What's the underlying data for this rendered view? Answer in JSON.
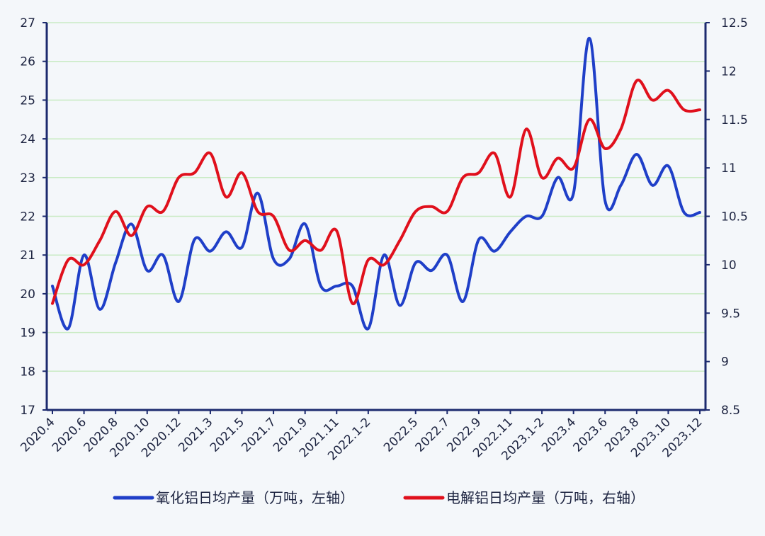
{
  "chart_data": {
    "type": "line",
    "title": "",
    "x": [
      "2020.4",
      "2020.5",
      "2020.6",
      "2020.7",
      "2020.8",
      "2020.9",
      "2020.10",
      "2020.11",
      "2020.12",
      "2021.1-2",
      "2021.3",
      "2021.4",
      "2021.5",
      "2021.6",
      "2021.7",
      "2021.8",
      "2021.9",
      "2021.10",
      "2021.11",
      "2021.12",
      "2022.1-2",
      "2022.3",
      "2022.4",
      "2022.5",
      "2022.6",
      "2022.7",
      "2022.8",
      "2022.9",
      "2022.10",
      "2022.11",
      "2022.12",
      "2023.1-2",
      "2023.3",
      "2023.4",
      "2023.5",
      "2023.6",
      "2023.7",
      "2023.8",
      "2023.9",
      "2023.10",
      "2023.11",
      "2023.12"
    ],
    "tick_labels": [
      "2020.4",
      "2020.6",
      "2020.8",
      "2020.10",
      "2020.12",
      "2021.3",
      "2021.5",
      "2021.7",
      "2021.9",
      "2021.11",
      "2022.1-2",
      "2022.5",
      "2022.7",
      "2022.9",
      "2022.11",
      "2023.1-2",
      "2023.4",
      "2023.6",
      "2023.8",
      "2023.10",
      "2023.12"
    ],
    "series": [
      {
        "name": "氧化铝日均产量（万吨，左轴）",
        "axis": "left",
        "color": "#1f3fc8",
        "values": [
          20.2,
          19.1,
          21.0,
          19.6,
          20.8,
          21.8,
          20.6,
          21.0,
          19.8,
          21.4,
          21.1,
          21.6,
          21.2,
          22.6,
          20.9,
          20.9,
          21.8,
          20.2,
          20.2,
          20.2,
          19.1,
          21.0,
          19.7,
          20.8,
          20.6,
          21.0,
          19.8,
          21.4,
          21.1,
          21.6,
          22.0,
          22.0,
          23.0,
          22.6,
          26.6,
          22.4,
          22.8,
          23.6,
          22.8,
          23.3,
          22.1,
          22.1
        ]
      },
      {
        "name": "电解铝日均产量（万吨，右轴）",
        "axis": "right",
        "color": "#e0101c",
        "values": [
          9.6,
          10.05,
          10.0,
          10.25,
          10.55,
          10.3,
          10.6,
          10.55,
          10.9,
          10.95,
          11.15,
          10.7,
          10.95,
          10.55,
          10.5,
          10.15,
          10.25,
          10.15,
          10.35,
          9.6,
          10.05,
          10.0,
          10.25,
          10.55,
          10.6,
          10.55,
          10.9,
          10.95,
          11.15,
          10.7,
          11.4,
          10.9,
          11.1,
          11.0,
          11.5,
          11.2,
          11.4,
          11.9,
          11.7,
          11.8,
          11.6,
          11.6
        ]
      }
    ],
    "y_left": {
      "min": 17,
      "max": 27,
      "step": 1,
      "ticks": [
        "17",
        "18",
        "19",
        "20",
        "21",
        "22",
        "23",
        "24",
        "25",
        "26",
        "27"
      ]
    },
    "y_right": {
      "min": 8.5,
      "max": 12.5,
      "step": 0.5,
      "ticks": [
        "8.5",
        "9",
        "9.5",
        "10",
        "10.5",
        "11",
        "11.5",
        "12",
        "12.5"
      ]
    },
    "grid": true,
    "legend": "bottom",
    "colors": {
      "background": "#f4f7fa",
      "axis": "#1c2a6e",
      "grid": "#c9ebc4"
    }
  }
}
